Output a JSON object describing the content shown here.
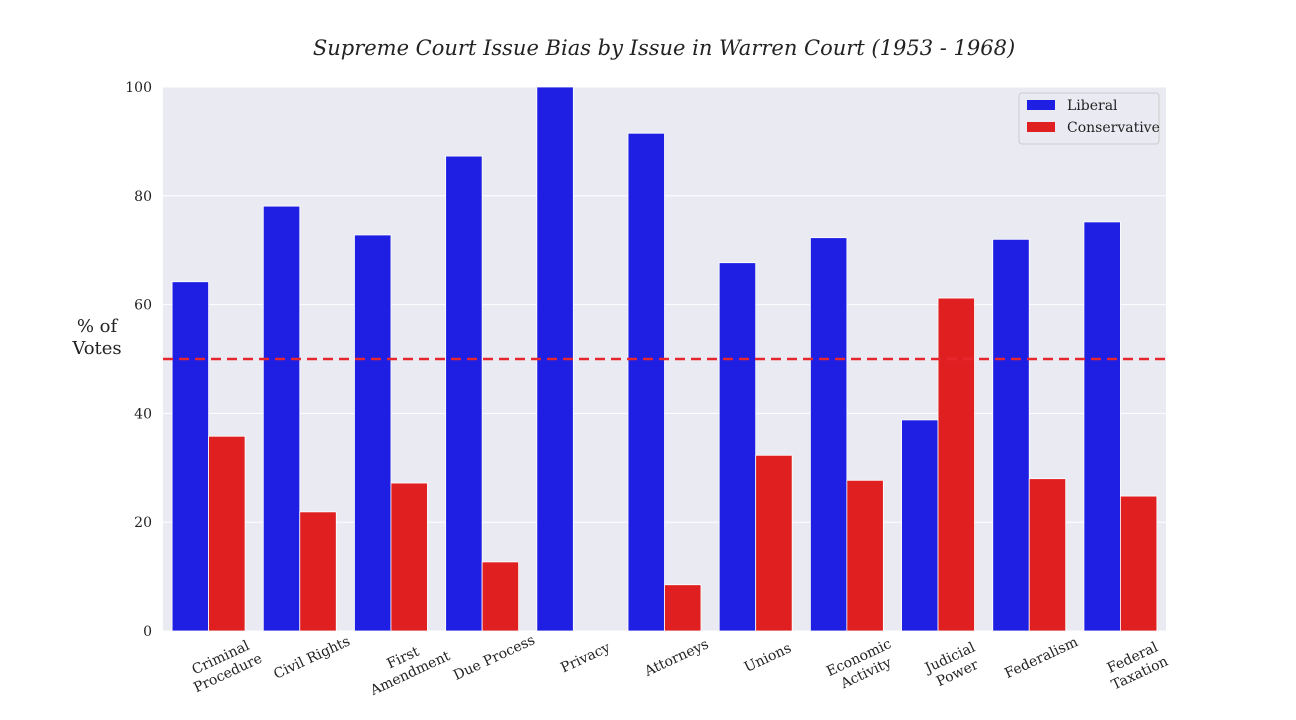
{
  "chart_data": {
    "type": "bar",
    "title": "Supreme Court Issue Bias by Issue in Warren Court (1953 - 1968)",
    "xlabel": "",
    "ylabel": [
      "% of",
      "Votes"
    ],
    "ylim": [
      0,
      100
    ],
    "yticks": [
      0,
      20,
      40,
      60,
      80,
      100
    ],
    "grid": true,
    "legend_placement": "top-right",
    "reference_line": {
      "value": 50,
      "color": "#e8262e",
      "style": "dashed"
    },
    "categories": [
      [
        "Criminal",
        "Procedure"
      ],
      [
        "Civil Rights"
      ],
      [
        "First",
        "Amendment"
      ],
      [
        "Due Process"
      ],
      [
        "Privacy"
      ],
      [
        "Attorneys"
      ],
      [
        "Unions"
      ],
      [
        "Economic",
        "Activity"
      ],
      [
        "Judicial",
        "Power"
      ],
      [
        "Federalism"
      ],
      [
        "Federal",
        "Taxation"
      ]
    ],
    "series": [
      {
        "name": "Liberal",
        "color": "#1f1fe3",
        "values": [
          64.2,
          78.1,
          72.8,
          87.3,
          100.0,
          91.5,
          67.7,
          72.3,
          38.8,
          72.0,
          75.2
        ]
      },
      {
        "name": "Conservative",
        "color": "#e02020",
        "values": [
          35.8,
          21.9,
          27.2,
          12.7,
          0.0,
          8.5,
          32.3,
          27.7,
          61.2,
          28.0,
          24.8
        ]
      }
    ]
  }
}
